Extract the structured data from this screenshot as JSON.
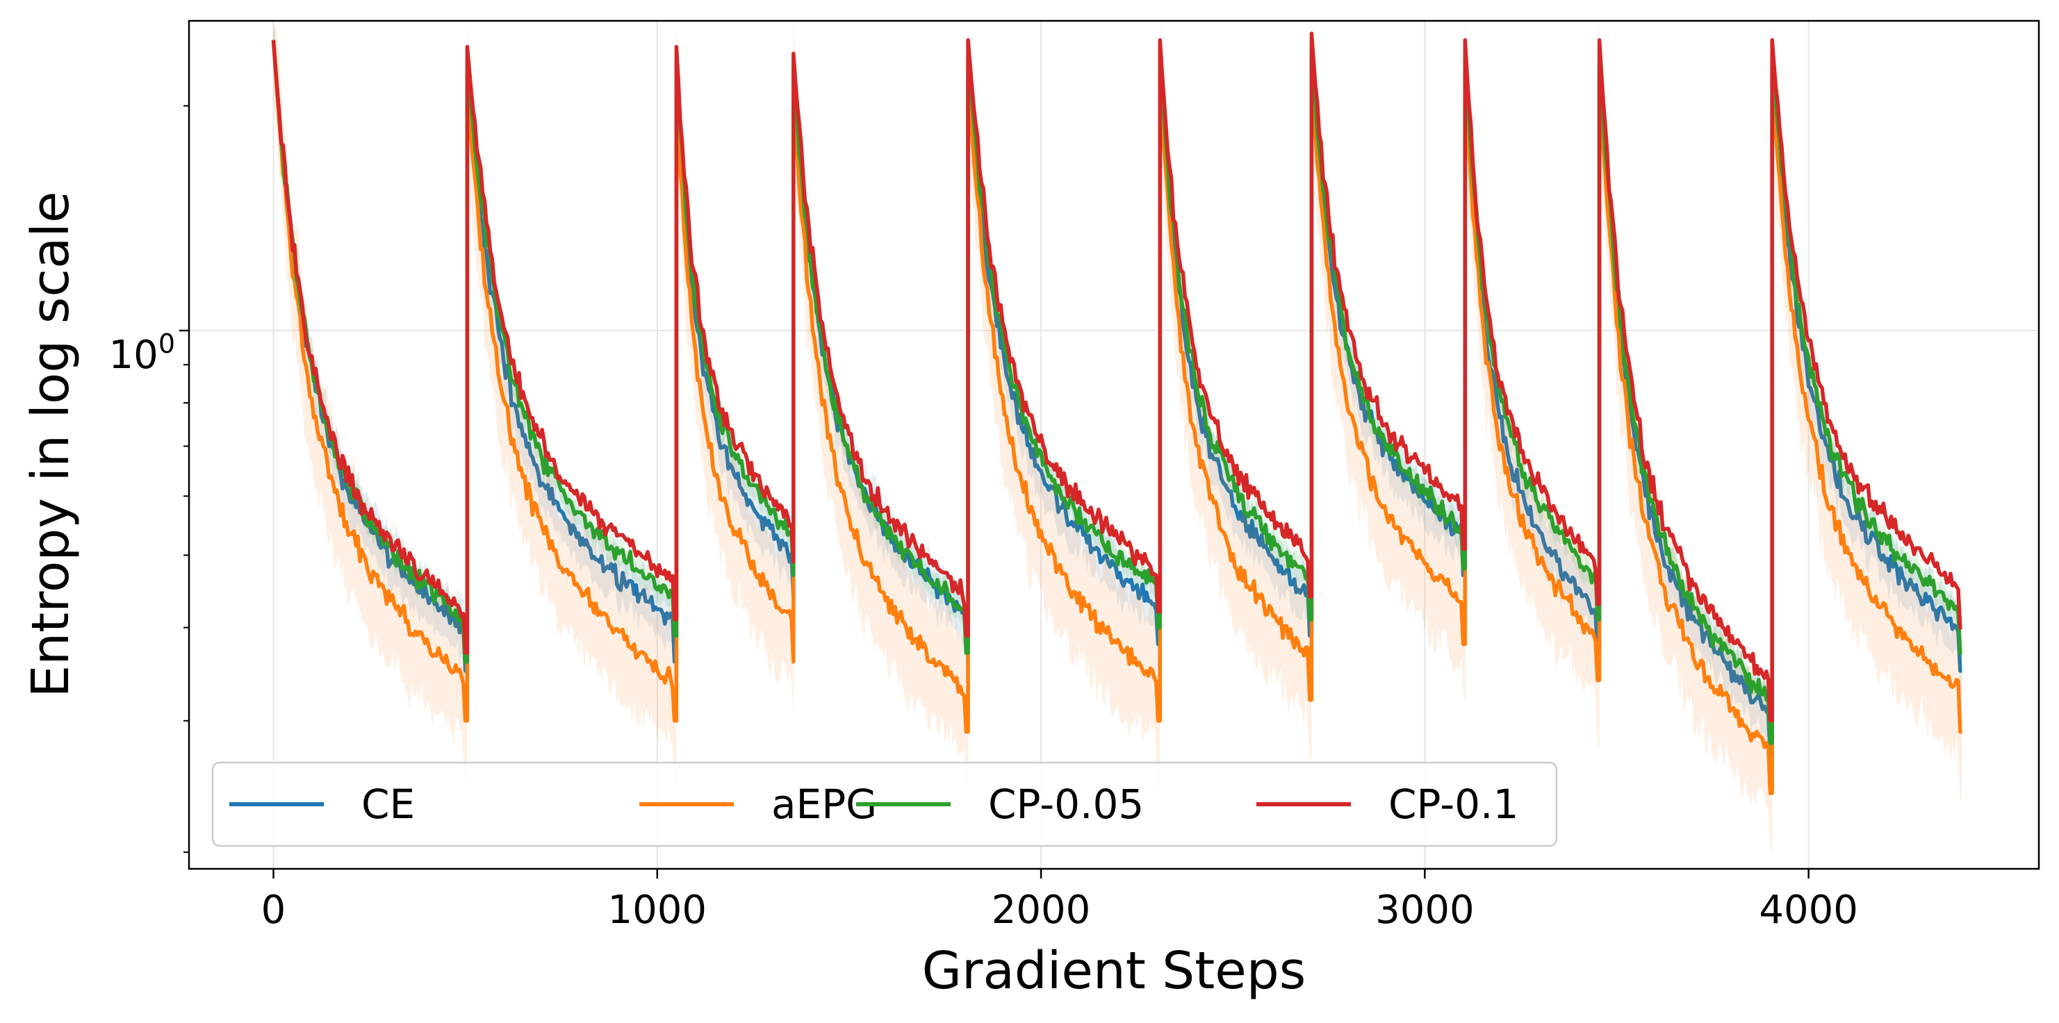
{
  "chart_data": {
    "type": "line",
    "title": "",
    "xlabel": "Gradient Steps",
    "ylabel": "Entropy in log scale",
    "yscale": "log",
    "xlim": [
      -220,
      4600
    ],
    "ylim": [
      0.19,
      2.6
    ],
    "xticks": [
      0,
      1000,
      2000,
      3000,
      4000
    ],
    "xtick_labels": [
      "0",
      "1000",
      "2000",
      "3000",
      "4000"
    ],
    "ytick_major": [
      1.0
    ],
    "ytick_major_label_base": "10",
    "ytick_major_label_exp": "0",
    "ytick_minor": [
      0.2,
      0.3,
      0.4,
      0.5,
      0.6,
      0.7,
      0.8,
      0.9,
      2.0
    ],
    "grid": true,
    "legend": {
      "placement": "bottom-left",
      "columns": 4
    },
    "series": [
      {
        "name": "CE",
        "color": "#1f77b4",
        "shade": 0.1,
        "cycles": [
          {
            "x0": 0,
            "x1": 505,
            "y0": 2.45,
            "y1": 0.35
          },
          {
            "x0": 505,
            "x1": 1050,
            "y0": 2.2,
            "y1": 0.36
          },
          {
            "x0": 1050,
            "x1": 1355,
            "y0": 2.2,
            "y1": 0.44
          },
          {
            "x0": 1355,
            "x1": 1810,
            "y0": 2.15,
            "y1": 0.37
          },
          {
            "x0": 1810,
            "x1": 2310,
            "y0": 2.25,
            "y1": 0.38
          },
          {
            "x0": 2310,
            "x1": 2705,
            "y0": 2.25,
            "y1": 0.39
          },
          {
            "x0": 2705,
            "x1": 3105,
            "y0": 2.3,
            "y1": 0.47
          },
          {
            "x0": 3105,
            "x1": 3455,
            "y0": 2.25,
            "y1": 0.37
          },
          {
            "x0": 3455,
            "x1": 3905,
            "y0": 2.25,
            "y1": 0.27
          },
          {
            "x0": 3905,
            "x1": 4400,
            "y0": 2.25,
            "y1": 0.35
          }
        ]
      },
      {
        "name": "aEPG",
        "color": "#ff7f0e",
        "shade": 0.24,
        "cycles": [
          {
            "x0": 0,
            "x1": 505,
            "y0": 2.45,
            "y1": 0.3
          },
          {
            "x0": 505,
            "x1": 1050,
            "y0": 2.1,
            "y1": 0.3
          },
          {
            "x0": 1050,
            "x1": 1355,
            "y0": 2.1,
            "y1": 0.36
          },
          {
            "x0": 1355,
            "x1": 1810,
            "y0": 2.05,
            "y1": 0.29
          },
          {
            "x0": 1810,
            "x1": 2310,
            "y0": 2.15,
            "y1": 0.3
          },
          {
            "x0": 2310,
            "x1": 2705,
            "y0": 2.15,
            "y1": 0.32
          },
          {
            "x0": 2705,
            "x1": 3105,
            "y0": 2.2,
            "y1": 0.38
          },
          {
            "x0": 3105,
            "x1": 3455,
            "y0": 2.15,
            "y1": 0.34
          },
          {
            "x0": 3455,
            "x1": 3905,
            "y0": 2.15,
            "y1": 0.24
          },
          {
            "x0": 3905,
            "x1": 4400,
            "y0": 2.15,
            "y1": 0.29
          }
        ]
      },
      {
        "name": "CP-0.05",
        "color": "#2ca02c",
        "shade": 0.05,
        "cycles": [
          {
            "x0": 0,
            "x1": 505,
            "y0": 2.45,
            "y1": 0.36
          },
          {
            "x0": 505,
            "x1": 1050,
            "y0": 2.3,
            "y1": 0.39
          },
          {
            "x0": 1050,
            "x1": 1355,
            "y0": 2.3,
            "y1": 0.47
          },
          {
            "x0": 1355,
            "x1": 1810,
            "y0": 2.25,
            "y1": 0.37
          },
          {
            "x0": 1810,
            "x1": 2310,
            "y0": 2.35,
            "y1": 0.4
          },
          {
            "x0": 2310,
            "x1": 2705,
            "y0": 2.35,
            "y1": 0.41
          },
          {
            "x0": 2705,
            "x1": 3105,
            "y0": 2.4,
            "y1": 0.48
          },
          {
            "x0": 3105,
            "x1": 3455,
            "y0": 2.35,
            "y1": 0.41
          },
          {
            "x0": 3455,
            "x1": 3905,
            "y0": 2.35,
            "y1": 0.28
          },
          {
            "x0": 3905,
            "x1": 4400,
            "y0": 2.35,
            "y1": 0.37
          }
        ]
      },
      {
        "name": "CP-0.1",
        "color": "#d62728",
        "shade": 0.0,
        "cycles": [
          {
            "x0": 0,
            "x1": 505,
            "y0": 2.45,
            "y1": 0.37
          },
          {
            "x0": 505,
            "x1": 1050,
            "y0": 2.4,
            "y1": 0.41
          },
          {
            "x0": 1050,
            "x1": 1355,
            "y0": 2.4,
            "y1": 0.49
          },
          {
            "x0": 1355,
            "x1": 1810,
            "y0": 2.35,
            "y1": 0.39
          },
          {
            "x0": 1810,
            "x1": 2310,
            "y0": 2.45,
            "y1": 0.42
          },
          {
            "x0": 2310,
            "x1": 2705,
            "y0": 2.45,
            "y1": 0.44
          },
          {
            "x0": 2705,
            "x1": 3105,
            "y0": 2.5,
            "y1": 0.51
          },
          {
            "x0": 3105,
            "x1": 3455,
            "y0": 2.45,
            "y1": 0.43
          },
          {
            "x0": 3455,
            "x1": 3905,
            "y0": 2.45,
            "y1": 0.3
          },
          {
            "x0": 3905,
            "x1": 4400,
            "y0": 2.45,
            "y1": 0.4
          }
        ]
      }
    ]
  }
}
